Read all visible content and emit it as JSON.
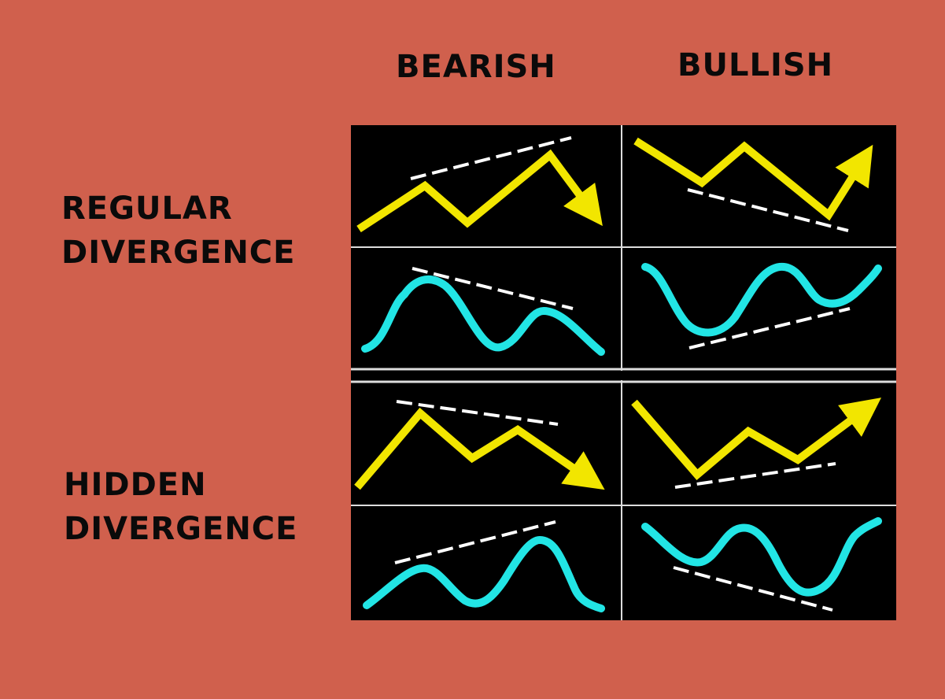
{
  "columns": [
    "BEARISH",
    "BULLISH"
  ],
  "rows": [
    {
      "line1": "REGULAR",
      "line2": "DIVERGENCE"
    },
    {
      "line1": "HIDDEN",
      "line2": "DIVERGENCE"
    }
  ],
  "colors": {
    "background": "#D0604D",
    "panel": "#000000",
    "divider": "#DDDDDD",
    "price_line": "#F2E600",
    "oscillator_line": "#22E5E5",
    "trend_line": "#FFFFFF",
    "text": "#0A0A0A"
  }
}
